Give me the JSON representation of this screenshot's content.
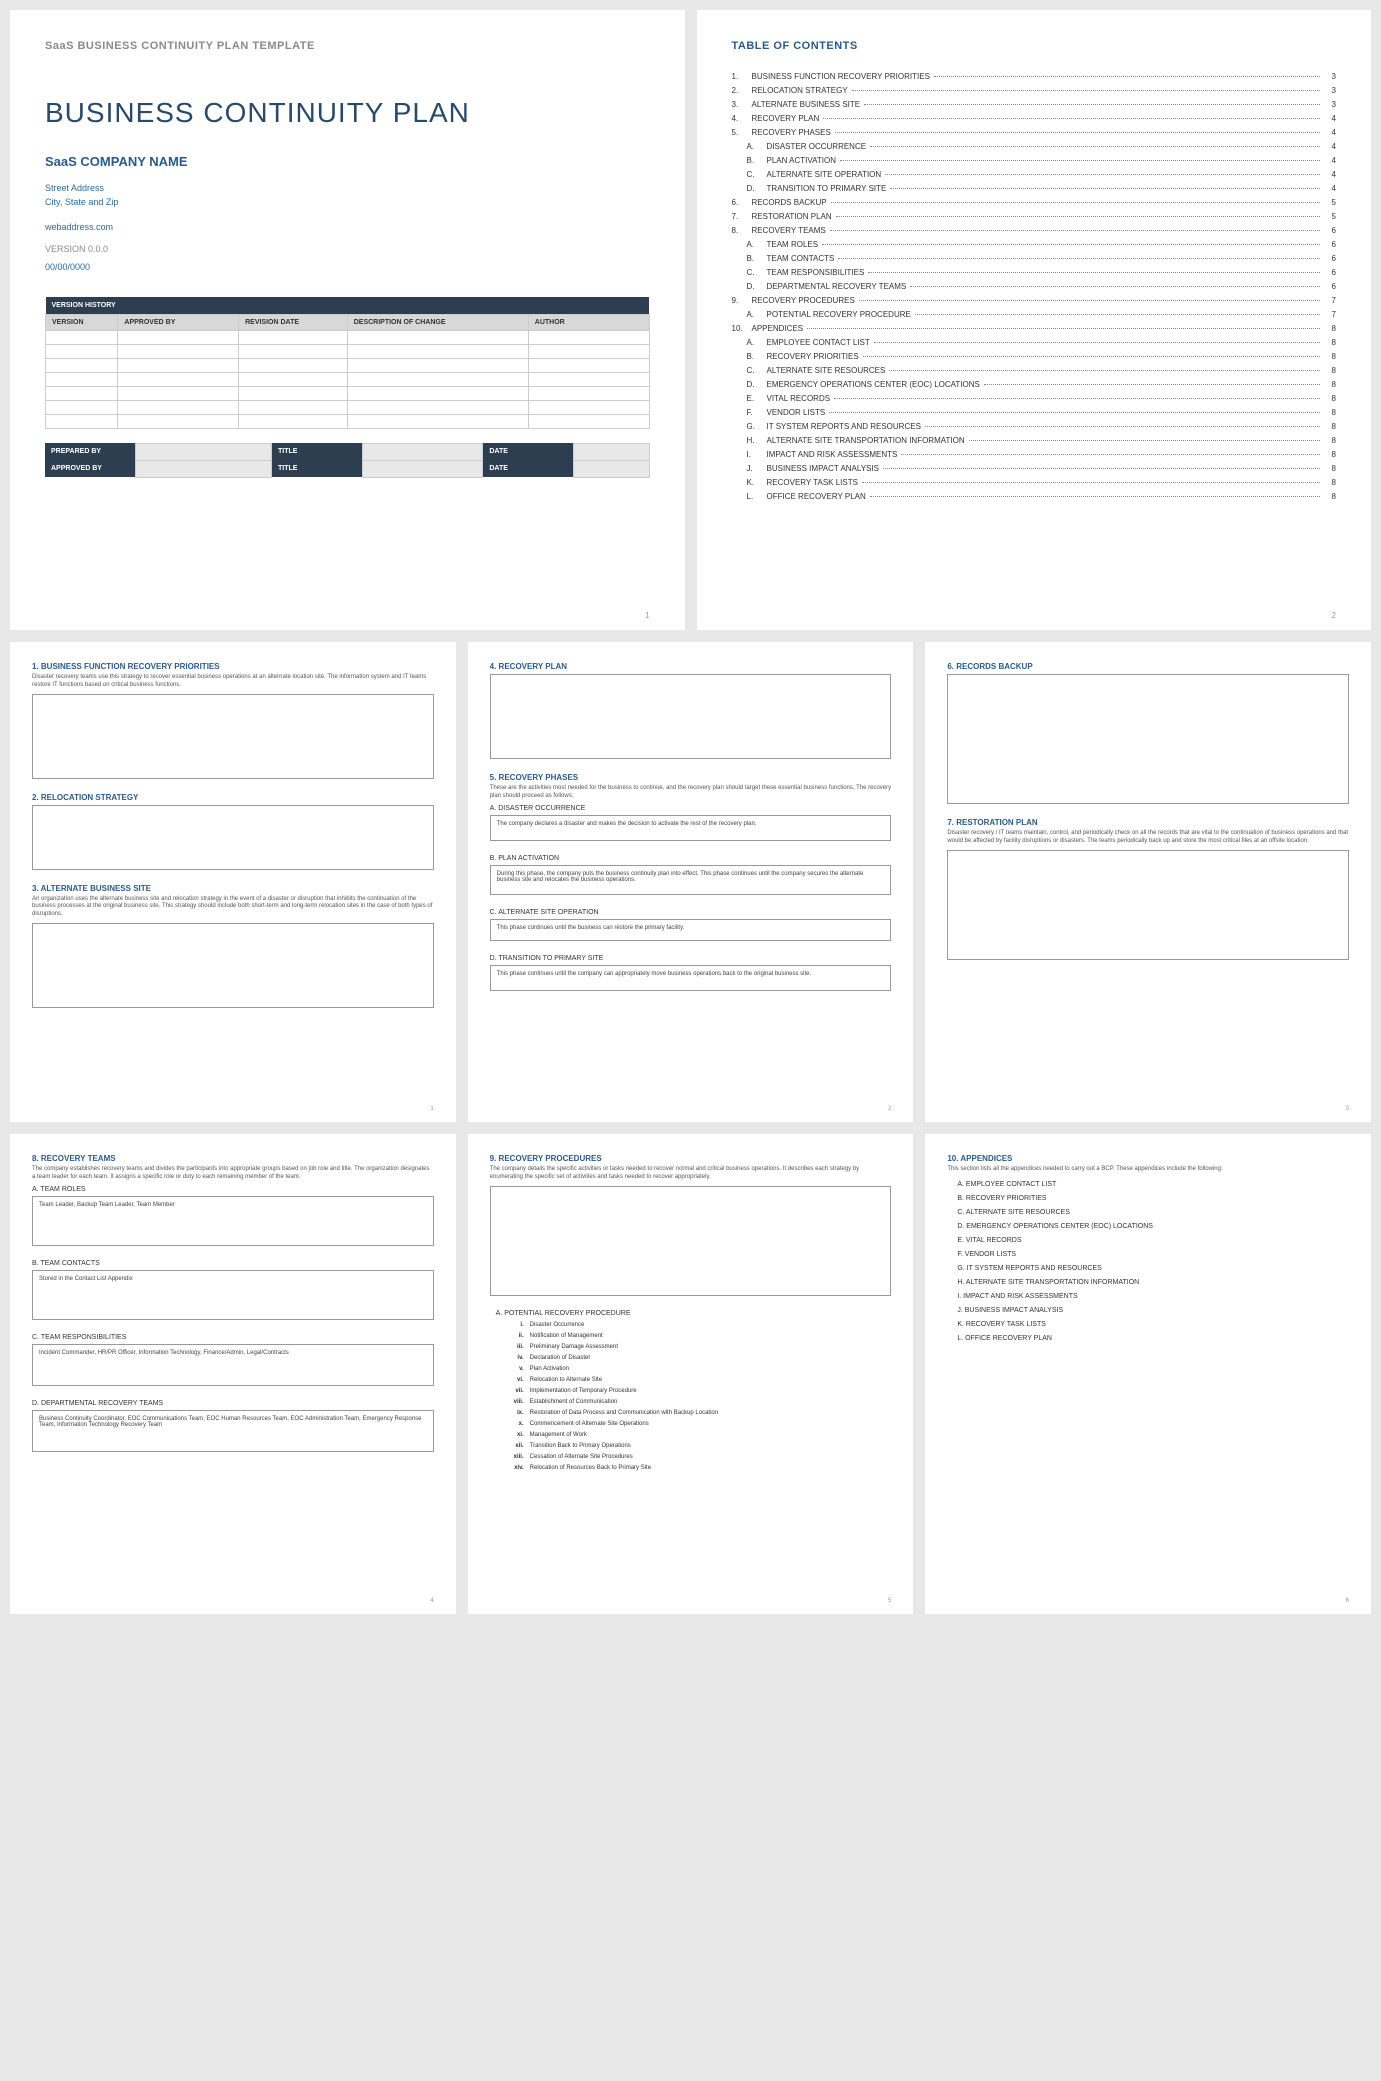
{
  "page1": {
    "template_label": "SaaS BUSINESS CONTINUITY PLAN TEMPLATE",
    "title": "BUSINESS CONTINUITY PLAN",
    "company": "SaaS COMPANY NAME",
    "street": "Street Address",
    "city": "City, State and Zip",
    "web": "webaddress.com",
    "version": "VERSION 0.0.0",
    "date": "00/00/0000",
    "vh_header": "VERSION HISTORY",
    "vh_cols": {
      "c1": "VERSION",
      "c2": "APPROVED BY",
      "c3": "REVISION DATE",
      "c4": "DESCRIPTION OF CHANGE",
      "c5": "AUTHOR"
    },
    "sig": {
      "prep": "PREPARED BY",
      "appr": "APPROVED BY",
      "title": "TITLE",
      "date": "DATE"
    },
    "pagenum": "1"
  },
  "page2": {
    "title": "TABLE OF CONTENTS",
    "items": [
      {
        "n": "1.",
        "t": "BUSINESS FUNCTION RECOVERY PRIORITIES",
        "p": "3",
        "sub": false
      },
      {
        "n": "2.",
        "t": "RELOCATION STRATEGY",
        "p": "3",
        "sub": false
      },
      {
        "n": "3.",
        "t": "ALTERNATE BUSINESS SITE",
        "p": "3",
        "sub": false
      },
      {
        "n": "4.",
        "t": "RECOVERY PLAN",
        "p": "4",
        "sub": false
      },
      {
        "n": "5.",
        "t": "RECOVERY PHASES",
        "p": "4",
        "sub": false
      },
      {
        "n": "A.",
        "t": "DISASTER OCCURRENCE",
        "p": "4",
        "sub": true
      },
      {
        "n": "B.",
        "t": "PLAN ACTIVATION",
        "p": "4",
        "sub": true
      },
      {
        "n": "C.",
        "t": "ALTERNATE SITE OPERATION",
        "p": "4",
        "sub": true
      },
      {
        "n": "D.",
        "t": "TRANSITION TO PRIMARY SITE",
        "p": "4",
        "sub": true
      },
      {
        "n": "6.",
        "t": "RECORDS BACKUP",
        "p": "5",
        "sub": false
      },
      {
        "n": "7.",
        "t": "RESTORATION PLAN",
        "p": "5",
        "sub": false
      },
      {
        "n": "8.",
        "t": "RECOVERY TEAMS",
        "p": "6",
        "sub": false
      },
      {
        "n": "A.",
        "t": "TEAM ROLES",
        "p": "6",
        "sub": true
      },
      {
        "n": "B.",
        "t": "TEAM CONTACTS",
        "p": "6",
        "sub": true
      },
      {
        "n": "C.",
        "t": "TEAM RESPONSIBILITIES",
        "p": "6",
        "sub": true
      },
      {
        "n": "D.",
        "t": "DEPARTMENTAL RECOVERY TEAMS",
        "p": "6",
        "sub": true
      },
      {
        "n": "9.",
        "t": "RECOVERY PROCEDURES",
        "p": "7",
        "sub": false
      },
      {
        "n": "A.",
        "t": "POTENTIAL RECOVERY PROCEDURE",
        "p": "7",
        "sub": true
      },
      {
        "n": "10.",
        "t": "APPENDICES",
        "p": "8",
        "sub": false
      },
      {
        "n": "A.",
        "t": "EMPLOYEE CONTACT LIST",
        "p": "8",
        "sub": true
      },
      {
        "n": "B.",
        "t": "RECOVERY PRIORITIES",
        "p": "8",
        "sub": true
      },
      {
        "n": "C.",
        "t": "ALTERNATE SITE RESOURCES",
        "p": "8",
        "sub": true
      },
      {
        "n": "D.",
        "t": "EMERGENCY OPERATIONS CENTER (EOC) LOCATIONS",
        "p": "8",
        "sub": true
      },
      {
        "n": "E.",
        "t": "VITAL RECORDS",
        "p": "8",
        "sub": true
      },
      {
        "n": "F.",
        "t": "VENDOR LISTS",
        "p": "8",
        "sub": true
      },
      {
        "n": "G.",
        "t": "IT SYSTEM REPORTS AND RESOURCES",
        "p": "8",
        "sub": true
      },
      {
        "n": "H.",
        "t": "ALTERNATE SITE TRANSPORTATION INFORMATION",
        "p": "8",
        "sub": true
      },
      {
        "n": "I.",
        "t": "IMPACT AND RISK ASSESSMENTS",
        "p": "8",
        "sub": true
      },
      {
        "n": "J.",
        "t": "BUSINESS IMPACT ANALYSIS",
        "p": "8",
        "sub": true
      },
      {
        "n": "K.",
        "t": "RECOVERY TASK LISTS",
        "p": "8",
        "sub": true
      },
      {
        "n": "L.",
        "t": "OFFICE RECOVERY PLAN",
        "p": "8",
        "sub": true
      }
    ],
    "pagenum": "2"
  },
  "p3": {
    "s1h": "1. BUSINESS FUNCTION RECOVERY PRIORITIES",
    "s1d": "Disaster recovery teams use this strategy to recover essential business operations at an alternate location site. The information system and IT teams restore IT functions based on critical business functions.",
    "s2h": "2. RELOCATION STRATEGY",
    "s3h": "3. ALTERNATE BUSINESS SITE",
    "s3d": "An organization uses the alternate business site and relocation strategy in the event of a disaster or disruption that inhibits the continuation of the business processes at the original business site. This strategy should include both short-term and long-term relocation sites in the case of both types of disruptions.",
    "pagenum": "1"
  },
  "p4": {
    "s4h": "4. RECOVERY PLAN",
    "s5h": "5. RECOVERY PHASES",
    "s5d": "These are the activities most needed for the business to continue, and the recovery plan should target these essential business functions. The recovery plan should proceed as follows:",
    "ah": "A. DISASTER OCCURRENCE",
    "at": "The company declares a disaster and makes the decision to activate the rest of the recovery plan.",
    "bh": "B. PLAN ACTIVATION",
    "bt": "During this phase, the company puts the business continuity plan into effect. This phase continues until the company secures the alternate business site and relocates the business operations.",
    "ch": "C. ALTERNATE SITE OPERATION",
    "ct": "This phase continues until the business can restore the primary facility.",
    "dh": "D. TRANSITION TO PRIMARY SITE",
    "dt": "This phase continues until the company can appropriately move business operations back to the original business site.",
    "pagenum": "2"
  },
  "p5": {
    "s6h": "6. RECORDS BACKUP",
    "s7h": "7. RESTORATION PLAN",
    "s7d": "Disaster recovery / IT teams maintain, control, and periodically check on all the records that are vital to the continuation of business operations and that would be affected by facility disruptions or disasters. The teams periodically back up and store the most critical files at an offsite location.",
    "pagenum": "3"
  },
  "p6": {
    "s8h": "8. RECOVERY TEAMS",
    "s8d": "The company establishes recovery teams and divides the participants into appropriate groups based on job role and title. The organization designates a team leader for each team. It assigns a specific role or duty to each remaining member of the team.",
    "ah": "A. TEAM ROLES",
    "at": "Team Leader, Backup Team Leader, Team Member",
    "bh": "B. TEAM CONTACTS",
    "bt": "Stored in the Contact List Appendix",
    "ch": "C. TEAM RESPONSIBILITIES",
    "ct": "Incident Commander, HR/PR Officer, Information Technology, Finance/Admin, Legal/Contracts",
    "dh": "D. DEPARTMENTAL RECOVERY TEAMS",
    "dt": "Business Continuity Coordinator, EOC Communications Team, EOC Human Resources Team, EOC Administration Team, Emergency Response Team, Information Technology Recovery Team",
    "pagenum": "4"
  },
  "p7": {
    "s9h": "9. RECOVERY PROCEDURES",
    "s9d": "The company details the specific activities or tasks needed to recover normal and critical business operations. It describes each strategy by enumerating the specific set of activities and tasks needed to recover appropriately.",
    "ah": "A. POTENTIAL RECOVERY PROCEDURE",
    "items": [
      {
        "n": "i.",
        "t": "Disaster Occurrence"
      },
      {
        "n": "ii.",
        "t": "Notification of Management"
      },
      {
        "n": "iii.",
        "t": "Preliminary Damage Assessment"
      },
      {
        "n": "iv.",
        "t": "Declaration of Disaster"
      },
      {
        "n": "v.",
        "t": "Plan Activation"
      },
      {
        "n": "vi.",
        "t": "Relocation to Alternate Site"
      },
      {
        "n": "vii.",
        "t": "Implementation of Temporary Procedure"
      },
      {
        "n": "viii.",
        "t": "Establishment of Communication"
      },
      {
        "n": "ix.",
        "t": "Restoration of Data Process and Communication with Backup Location"
      },
      {
        "n": "x.",
        "t": "Commencement of Alternate Site Operations"
      },
      {
        "n": "xi.",
        "t": "Management of Work"
      },
      {
        "n": "xii.",
        "t": "Transition Back to Primary Operations"
      },
      {
        "n": "xiii.",
        "t": "Cessation of Alternate Site Procedures"
      },
      {
        "n": "xiv.",
        "t": "Relocation of Resources Back to Primary Site"
      }
    ],
    "pagenum": "5"
  },
  "p8": {
    "s10h": "10.   APPENDICES",
    "s10d": "This section lists all the appendices needed to carry out a BCP. These appendices include the following:",
    "items": [
      "A. EMPLOYEE CONTACT LIST",
      "B. RECOVERY PRIORITIES",
      "C. ALTERNATE SITE RESOURCES",
      "D. EMERGENCY OPERATIONS CENTER (EOC) LOCATIONS",
      "E. VITAL RECORDS",
      "F. VENDOR LISTS",
      "G. IT SYSTEM REPORTS AND RESOURCES",
      "H. ALTERNATE SITE TRANSPORTATION INFORMATION",
      "I. IMPACT AND RISK ASSESSMENTS",
      "J. BUSINESS IMPACT ANALYSIS",
      "K. RECOVERY TASK LISTS",
      "L. OFFICE RECOVERY PLAN"
    ],
    "pagenum": "6"
  },
  "colors": {
    "page_bg": "#ffffff",
    "body_bg": "#e8e8e8",
    "heading": "#2a5a8a",
    "dark": "#2c3e50",
    "text": "#333333"
  }
}
